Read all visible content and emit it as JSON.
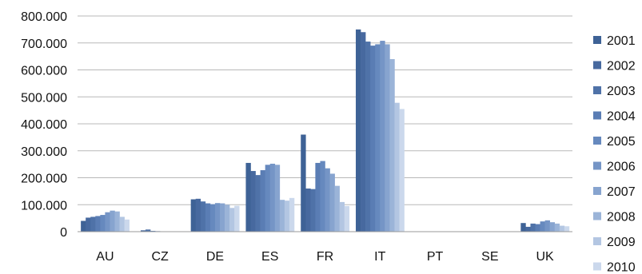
{
  "chart_data": {
    "type": "bar",
    "categories": [
      "AU",
      "CZ",
      "DE",
      "ES",
      "FR",
      "IT",
      "PT",
      "SE",
      "UK"
    ],
    "y_ticks": [
      "0",
      "100.000",
      "200.000",
      "300.000",
      "400.000",
      "500.000",
      "600.000",
      "700.000",
      "800.000"
    ],
    "ylim": [
      0,
      800000
    ],
    "grid": true,
    "legend_position": "right",
    "series": [
      {
        "name": "2001",
        "color": "#3e6296",
        "values": [
          40000,
          0,
          120000,
          255000,
          360000,
          750000,
          0,
          0,
          32000
        ]
      },
      {
        "name": "2002",
        "color": "#47699f",
        "values": [
          52000,
          5000,
          122000,
          225000,
          160000,
          740000,
          0,
          0,
          18000
        ]
      },
      {
        "name": "2003",
        "color": "#4f72a8",
        "values": [
          55000,
          8000,
          112000,
          210000,
          158000,
          705000,
          0,
          0,
          30000
        ]
      },
      {
        "name": "2004",
        "color": "#5a7db4",
        "values": [
          58000,
          3000,
          105000,
          228000,
          255000,
          690000,
          0,
          0,
          28000
        ]
      },
      {
        "name": "2005",
        "color": "#6689be",
        "values": [
          62000,
          2000,
          102000,
          248000,
          262000,
          695000,
          0,
          0,
          38000
        ]
      },
      {
        "name": "2006",
        "color": "#7595c6",
        "values": [
          72000,
          1000,
          106000,
          252000,
          235000,
          708000,
          0,
          0,
          42000
        ]
      },
      {
        "name": "2007",
        "color": "#87a4cf",
        "values": [
          78000,
          1000,
          105000,
          248000,
          215000,
          695000,
          0,
          0,
          35000
        ]
      },
      {
        "name": "2008",
        "color": "#9bb4d8",
        "values": [
          75000,
          0,
          100000,
          118000,
          170000,
          640000,
          0,
          0,
          30000
        ]
      },
      {
        "name": "2009",
        "color": "#b3c6e2",
        "values": [
          55000,
          0,
          88000,
          115000,
          110000,
          478000,
          0,
          0,
          22000
        ]
      },
      {
        "name": "2010",
        "color": "#cbd8ec",
        "values": [
          45000,
          0,
          96000,
          125000,
          95000,
          455000,
          0,
          0,
          20000
        ]
      }
    ]
  }
}
